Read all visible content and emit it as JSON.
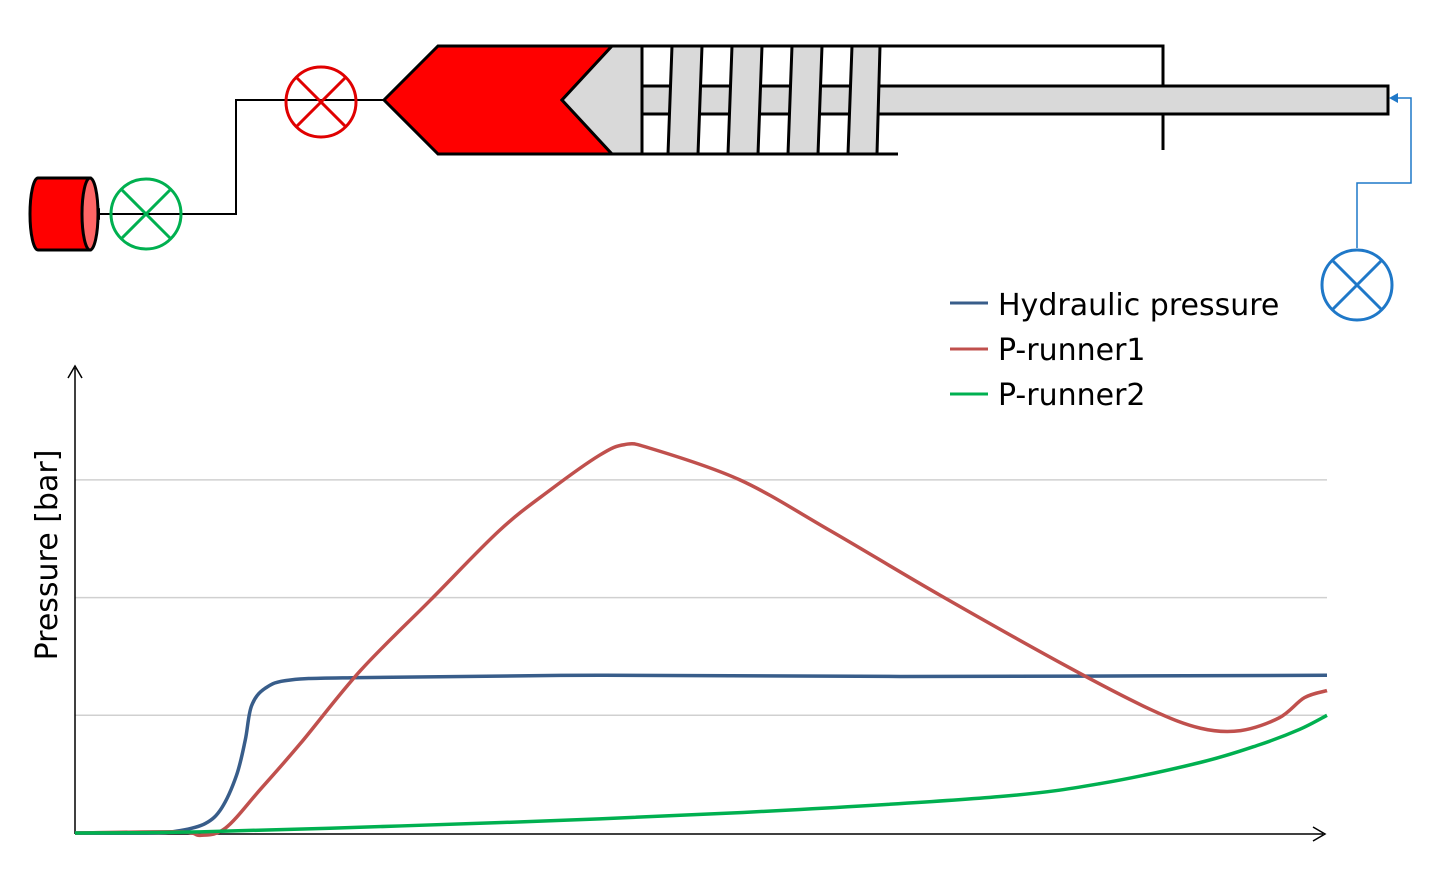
{
  "chart_data": {
    "type": "line",
    "title": "",
    "xlabel": "",
    "ylabel": "Pressure [bar]",
    "xlim": [
      0,
      100
    ],
    "ylim": [
      0,
      3.4
    ],
    "grid": true,
    "gridlines_y": [
      1,
      2,
      3
    ],
    "tick_labels_shown": false,
    "legend_position": "top-right",
    "series": [
      {
        "name": "Hydraulic pressure",
        "color": "#385d8a",
        "points": [
          [
            0,
            0
          ],
          [
            6,
            0
          ],
          [
            8.4,
            0.02
          ],
          [
            10.4,
            0.08
          ],
          [
            11.7,
            0.21
          ],
          [
            12.9,
            0.49
          ],
          [
            13.6,
            0.79
          ],
          [
            14.1,
            1.08
          ],
          [
            15.2,
            1.23
          ],
          [
            17.2,
            1.3
          ],
          [
            22.8,
            1.32
          ],
          [
            41.9,
            1.34
          ],
          [
            65.9,
            1.33
          ],
          [
            100,
            1.34
          ]
        ]
      },
      {
        "name": "P-runner1",
        "color": "#c0504d",
        "points": [
          [
            0,
            0
          ],
          [
            8.4,
            0.01
          ],
          [
            10,
            -0.02
          ],
          [
            12,
            0.04
          ],
          [
            14.8,
            0.37
          ],
          [
            18,
            0.76
          ],
          [
            22.8,
            1.38
          ],
          [
            28.4,
            1.98
          ],
          [
            33.9,
            2.57
          ],
          [
            37.9,
            2.91
          ],
          [
            41.9,
            3.21
          ],
          [
            43.9,
            3.3
          ],
          [
            45.9,
            3.27
          ],
          [
            53.1,
            3.0
          ],
          [
            60.3,
            2.57
          ],
          [
            69.1,
            2.02
          ],
          [
            79.5,
            1.4
          ],
          [
            85.9,
            1.05
          ],
          [
            89.9,
            0.89
          ],
          [
            93.1,
            0.87
          ],
          [
            96.2,
            0.98
          ],
          [
            98.2,
            1.15
          ],
          [
            100,
            1.21
          ]
        ]
      },
      {
        "name": "P-runner2",
        "color": "#00b050",
        "points": [
          [
            0,
            0
          ],
          [
            10,
            0.01
          ],
          [
            26,
            0.06
          ],
          [
            41.9,
            0.12
          ],
          [
            57.9,
            0.2
          ],
          [
            73.9,
            0.31
          ],
          [
            81.9,
            0.42
          ],
          [
            89.9,
            0.6
          ],
          [
            94.6,
            0.75
          ],
          [
            97.8,
            0.88
          ],
          [
            100,
            1.0
          ]
        ]
      }
    ]
  },
  "diagram": {
    "colors": {
      "melt": "#ff0000",
      "screw": "#d9d9d9",
      "valve_red": "#e00000",
      "valve_green": "#00b050",
      "valve_blue": "#1f78c8"
    },
    "valves": [
      "red-valve-icon",
      "green-valve-icon",
      "blue-valve-icon"
    ]
  }
}
